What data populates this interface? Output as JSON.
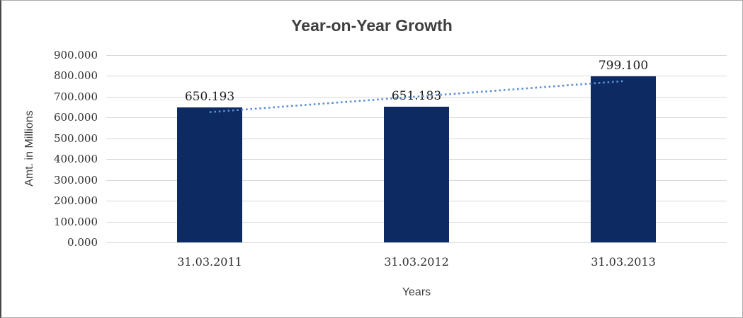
{
  "chart_data": {
    "type": "bar",
    "title": "Year-on-Year Growth",
    "xlabel": "Years",
    "ylabel": "Amt. in Millions",
    "categories": [
      "31.03.2011",
      "31.03.2012",
      "31.03.2013"
    ],
    "values": [
      650.193,
      651.183,
      799.1
    ],
    "data_labels": [
      "650.193",
      "651.183",
      "799.100"
    ],
    "ylim": [
      0,
      900
    ],
    "ytick_step": 100,
    "ytick_labels": [
      "0.000",
      "100.000",
      "200.000",
      "300.000",
      "400.000",
      "500.000",
      "600.000",
      "700.000",
      "800.000",
      "900.000"
    ],
    "grid": true,
    "legend": "none",
    "bar_color": "#0e2a63",
    "gridline_color": "#d8d8d8",
    "title_color": "#3f3f3f",
    "axis_title_color": "#3f3f3f",
    "tick_label_color": "#2e2e2e",
    "trendline": {
      "type": "linear",
      "style": "dotted",
      "color": "#5b8fd4",
      "start_value": 626,
      "end_value": 775
    }
  }
}
